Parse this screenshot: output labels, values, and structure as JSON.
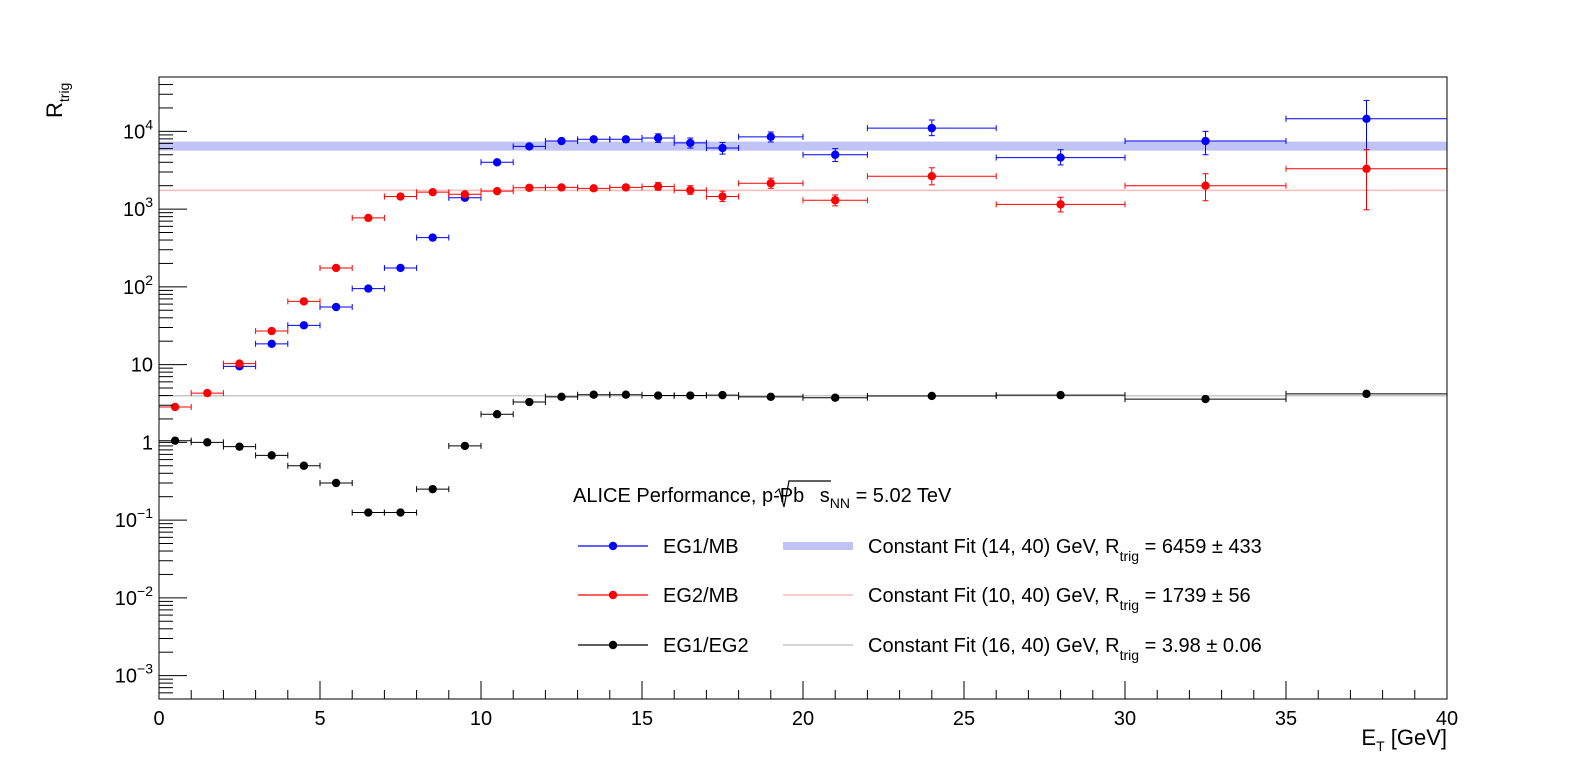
{
  "chart_data": {
    "type": "scatter",
    "title": "",
    "xlabel": "E",
    "xlabel_sub": "T",
    "xlabel_unit": " [GeV]",
    "ylabel": "R",
    "ylabel_sub": "trig",
    "xlim": [
      0,
      40
    ],
    "ylim": [
      0.0005,
      50000
    ],
    "yscale": "log",
    "grid": false,
    "legend_position": "bottom-right inside plot",
    "x_tick_labels": [
      "0",
      "5",
      "10",
      "15",
      "20",
      "25",
      "30",
      "35",
      "40"
    ],
    "y_tick_labels": [
      {
        "value": 0.001,
        "base": "10",
        "exp": "−3"
      },
      {
        "value": 0.01,
        "base": "10",
        "exp": "−2"
      },
      {
        "value": 0.1,
        "base": "10",
        "exp": "−1"
      },
      {
        "value": 1,
        "base": "1",
        "exp": ""
      },
      {
        "value": 10,
        "base": "10",
        "exp": ""
      },
      {
        "value": 100,
        "base": "10",
        "exp": "2"
      },
      {
        "value": 1000,
        "base": "10",
        "exp": "3"
      },
      {
        "value": 10000,
        "base": "10",
        "exp": "4"
      }
    ],
    "annotation": {
      "prefix": "ALICE Performance, p-Pb ",
      "sqrt_arg": "s",
      "sqrt_sub": "NN",
      "suffix": " = 5.02 TeV"
    },
    "series": [
      {
        "name": "EG1/MB",
        "color": "#0000ff",
        "points": [
          {
            "x": 2.5,
            "xerr": 0.5,
            "y": 9.5,
            "ylo": 9.0,
            "yhi": 10.0
          },
          {
            "x": 3.5,
            "xerr": 0.5,
            "y": 18.5,
            "ylo": 17.5,
            "yhi": 19.5
          },
          {
            "x": 4.5,
            "xerr": 0.5,
            "y": 32,
            "ylo": 30,
            "yhi": 34
          },
          {
            "x": 5.5,
            "xerr": 0.5,
            "y": 55,
            "ylo": 52,
            "yhi": 58
          },
          {
            "x": 6.5,
            "xerr": 0.5,
            "y": 95,
            "ylo": 90,
            "yhi": 100
          },
          {
            "x": 7.5,
            "xerr": 0.5,
            "y": 175,
            "ylo": 165,
            "yhi": 185
          },
          {
            "x": 8.5,
            "xerr": 0.5,
            "y": 430,
            "ylo": 410,
            "yhi": 450
          },
          {
            "x": 9.5,
            "xerr": 0.5,
            "y": 1400,
            "ylo": 1300,
            "yhi": 1500
          },
          {
            "x": 10.5,
            "xerr": 0.5,
            "y": 4000,
            "ylo": 3800,
            "yhi": 4200
          },
          {
            "x": 11.5,
            "xerr": 0.5,
            "y": 6400,
            "ylo": 6000,
            "yhi": 6800
          },
          {
            "x": 12.5,
            "xerr": 0.5,
            "y": 7500,
            "ylo": 7000,
            "yhi": 8000
          },
          {
            "x": 13.5,
            "xerr": 0.5,
            "y": 7900,
            "ylo": 7300,
            "yhi": 8500
          },
          {
            "x": 14.5,
            "xerr": 0.5,
            "y": 7900,
            "ylo": 7200,
            "yhi": 8600
          },
          {
            "x": 15.5,
            "xerr": 0.5,
            "y": 8200,
            "ylo": 7200,
            "yhi": 9300
          },
          {
            "x": 16.5,
            "xerr": 0.5,
            "y": 7100,
            "ylo": 6100,
            "yhi": 8200
          },
          {
            "x": 17.5,
            "xerr": 0.5,
            "y": 6100,
            "ylo": 5100,
            "yhi": 7200
          },
          {
            "x": 19.0,
            "xerr": 1.0,
            "y": 8500,
            "ylo": 7300,
            "yhi": 9800
          },
          {
            "x": 21.0,
            "xerr": 1.0,
            "y": 5000,
            "ylo": 4100,
            "yhi": 6000
          },
          {
            "x": 24.0,
            "xerr": 2.0,
            "y": 11000,
            "ylo": 8800,
            "yhi": 14000
          },
          {
            "x": 28.0,
            "xerr": 2.0,
            "y": 4600,
            "ylo": 3700,
            "yhi": 5800
          },
          {
            "x": 32.5,
            "xerr": 2.5,
            "y": 7500,
            "ylo": 5000,
            "yhi": 10000
          },
          {
            "x": 37.5,
            "xerr": 2.5,
            "y": 14500,
            "ylo": 5800,
            "yhi": 25000
          }
        ]
      },
      {
        "name": "EG2/MB",
        "color": "#ff0000",
        "points": [
          {
            "x": 0.5,
            "xerr": 0.5,
            "y": 2.85,
            "ylo": 2.75,
            "yhi": 2.95
          },
          {
            "x": 1.5,
            "xerr": 0.5,
            "y": 4.3,
            "ylo": 4.15,
            "yhi": 4.45
          },
          {
            "x": 2.5,
            "xerr": 0.5,
            "y": 10.3,
            "ylo": 9.9,
            "yhi": 10.7
          },
          {
            "x": 3.5,
            "xerr": 0.5,
            "y": 27,
            "ylo": 26,
            "yhi": 28
          },
          {
            "x": 4.5,
            "xerr": 0.5,
            "y": 65,
            "ylo": 62,
            "yhi": 68
          },
          {
            "x": 5.5,
            "xerr": 0.5,
            "y": 175,
            "ylo": 168,
            "yhi": 182
          },
          {
            "x": 6.5,
            "xerr": 0.5,
            "y": 770,
            "ylo": 740,
            "yhi": 800
          },
          {
            "x": 7.5,
            "xerr": 0.5,
            "y": 1450,
            "ylo": 1390,
            "yhi": 1510
          },
          {
            "x": 8.5,
            "xerr": 0.5,
            "y": 1650,
            "ylo": 1580,
            "yhi": 1720
          },
          {
            "x": 9.5,
            "xerr": 0.5,
            "y": 1550,
            "ylo": 1480,
            "yhi": 1620
          },
          {
            "x": 10.5,
            "xerr": 0.5,
            "y": 1700,
            "ylo": 1620,
            "yhi": 1780
          },
          {
            "x": 11.5,
            "xerr": 0.5,
            "y": 1880,
            "ylo": 1790,
            "yhi": 1970
          },
          {
            "x": 12.5,
            "xerr": 0.5,
            "y": 1900,
            "ylo": 1800,
            "yhi": 2000
          },
          {
            "x": 13.5,
            "xerr": 0.5,
            "y": 1850,
            "ylo": 1750,
            "yhi": 1960
          },
          {
            "x": 14.5,
            "xerr": 0.5,
            "y": 1900,
            "ylo": 1780,
            "yhi": 2050
          },
          {
            "x": 15.5,
            "xerr": 0.5,
            "y": 1950,
            "ylo": 1750,
            "yhi": 2200
          },
          {
            "x": 16.5,
            "xerr": 0.5,
            "y": 1750,
            "ylo": 1550,
            "yhi": 2000
          },
          {
            "x": 17.5,
            "xerr": 0.5,
            "y": 1450,
            "ylo": 1250,
            "yhi": 1700
          },
          {
            "x": 19.0,
            "xerr": 1.0,
            "y": 2150,
            "ylo": 1850,
            "yhi": 2500
          },
          {
            "x": 21.0,
            "xerr": 1.0,
            "y": 1300,
            "ylo": 1100,
            "yhi": 1520
          },
          {
            "x": 24.0,
            "xerr": 2.0,
            "y": 2650,
            "ylo": 2050,
            "yhi": 3400
          },
          {
            "x": 28.0,
            "xerr": 2.0,
            "y": 1150,
            "ylo": 920,
            "yhi": 1420
          },
          {
            "x": 32.5,
            "xerr": 2.5,
            "y": 2000,
            "ylo": 1280,
            "yhi": 2850
          },
          {
            "x": 37.5,
            "xerr": 2.5,
            "y": 3300,
            "ylo": 980,
            "yhi": 5800
          }
        ]
      },
      {
        "name": "EG1/EG2",
        "color": "#000000",
        "points": [
          {
            "x": 0.5,
            "xerr": 0.5,
            "y": 1.05,
            "ylo": 1.02,
            "yhi": 1.08
          },
          {
            "x": 1.5,
            "xerr": 0.5,
            "y": 1.0,
            "ylo": 0.97,
            "yhi": 1.03
          },
          {
            "x": 2.5,
            "xerr": 0.5,
            "y": 0.88,
            "ylo": 0.85,
            "yhi": 0.91
          },
          {
            "x": 3.5,
            "xerr": 0.5,
            "y": 0.68,
            "ylo": 0.66,
            "yhi": 0.7
          },
          {
            "x": 4.5,
            "xerr": 0.5,
            "y": 0.5,
            "ylo": 0.48,
            "yhi": 0.52
          },
          {
            "x": 5.5,
            "xerr": 0.5,
            "y": 0.3,
            "ylo": 0.29,
            "yhi": 0.31
          },
          {
            "x": 6.5,
            "xerr": 0.5,
            "y": 0.125,
            "ylo": 0.12,
            "yhi": 0.13
          },
          {
            "x": 7.5,
            "xerr": 0.5,
            "y": 0.125,
            "ylo": 0.12,
            "yhi": 0.13
          },
          {
            "x": 8.5,
            "xerr": 0.5,
            "y": 0.25,
            "ylo": 0.24,
            "yhi": 0.26
          },
          {
            "x": 9.5,
            "xerr": 0.5,
            "y": 0.9,
            "ylo": 0.87,
            "yhi": 0.93
          },
          {
            "x": 10.5,
            "xerr": 0.5,
            "y": 2.3,
            "ylo": 2.2,
            "yhi": 2.4
          },
          {
            "x": 11.5,
            "xerr": 0.5,
            "y": 3.3,
            "ylo": 3.2,
            "yhi": 3.4
          },
          {
            "x": 12.5,
            "xerr": 0.5,
            "y": 3.85,
            "ylo": 3.75,
            "yhi": 3.95
          },
          {
            "x": 13.5,
            "xerr": 0.5,
            "y": 4.1,
            "ylo": 4.0,
            "yhi": 4.2
          },
          {
            "x": 14.5,
            "xerr": 0.5,
            "y": 4.1,
            "ylo": 4.0,
            "yhi": 4.2
          },
          {
            "x": 15.5,
            "xerr": 0.5,
            "y": 4.0,
            "ylo": 3.9,
            "yhi": 4.1
          },
          {
            "x": 16.5,
            "xerr": 0.5,
            "y": 4.0,
            "ylo": 3.9,
            "yhi": 4.1
          },
          {
            "x": 17.5,
            "xerr": 0.5,
            "y": 4.05,
            "ylo": 3.95,
            "yhi": 4.15
          },
          {
            "x": 19.0,
            "xerr": 1.0,
            "y": 3.85,
            "ylo": 3.75,
            "yhi": 3.95
          },
          {
            "x": 21.0,
            "xerr": 1.0,
            "y": 3.75,
            "ylo": 3.65,
            "yhi": 3.85
          },
          {
            "x": 24.0,
            "xerr": 2.0,
            "y": 3.95,
            "ylo": 3.85,
            "yhi": 4.05
          },
          {
            "x": 28.0,
            "xerr": 2.0,
            "y": 4.05,
            "ylo": 3.95,
            "yhi": 4.15
          },
          {
            "x": 32.5,
            "xerr": 2.5,
            "y": 3.6,
            "ylo": 3.45,
            "yhi": 3.75
          },
          {
            "x": 37.5,
            "xerr": 2.5,
            "y": 4.2,
            "ylo": 4.0,
            "yhi": 4.4
          }
        ]
      }
    ],
    "fits": [
      {
        "label": "Constant Fit (14, 40) GeV, R",
        "label_sub": "trig",
        "result": " = 6459 ± 433",
        "value": 6459,
        "error": 433,
        "color": "#bfc3f5",
        "style": "band"
      },
      {
        "label": "Constant Fit (10, 40) GeV, R",
        "label_sub": "trig",
        "result": " = 1739 ± 56",
        "value": 1739,
        "error": 56,
        "color": "#ffbcbc",
        "style": "line"
      },
      {
        "label": "Constant Fit (16, 40) GeV, R",
        "label_sub": "trig",
        "result": " = 3.98 ± 0.06",
        "value": 3.98,
        "error": 0.06,
        "color": "#c8c8c8",
        "style": "line"
      }
    ]
  }
}
